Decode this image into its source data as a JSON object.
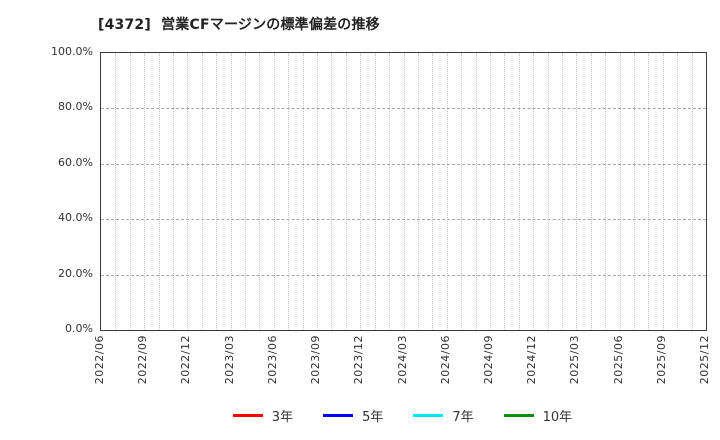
{
  "chart": {
    "title": "[4372]  営業CFマージンの標準偏差の推移"
  },
  "chart_data": {
    "type": "line",
    "title": "[4372]  営業CFマージンの標準偏差の推移",
    "xlabel": "",
    "ylabel": "",
    "ylim": [
      0,
      100
    ],
    "y_ticks": [
      {
        "value": 0,
        "label": "0.0%"
      },
      {
        "value": 20,
        "label": "20.0%"
      },
      {
        "value": 40,
        "label": "40.0%"
      },
      {
        "value": 60,
        "label": "60.0%"
      },
      {
        "value": 80,
        "label": "80.0%"
      },
      {
        "value": 100,
        "label": "100.0%"
      }
    ],
    "x_tick_labels": [
      "2022/06",
      "2022/09",
      "2022/12",
      "2023/03",
      "2023/06",
      "2023/09",
      "2023/12",
      "2024/03",
      "2024/06",
      "2024/09",
      "2024/12",
      "2025/03",
      "2025/06",
      "2025/09",
      "2025/12"
    ],
    "x_minor_divisions": 42,
    "grid": true,
    "legend_position": "bottom",
    "series": [
      {
        "name": "3年",
        "color": "#ff0000",
        "x": [],
        "values": []
      },
      {
        "name": "5年",
        "color": "#0000ff",
        "x": [],
        "values": []
      },
      {
        "name": "7年",
        "color": "#00eaff",
        "x": [],
        "values": []
      },
      {
        "name": "10年",
        "color": "#0a8f0a",
        "x": [],
        "values": []
      }
    ]
  }
}
